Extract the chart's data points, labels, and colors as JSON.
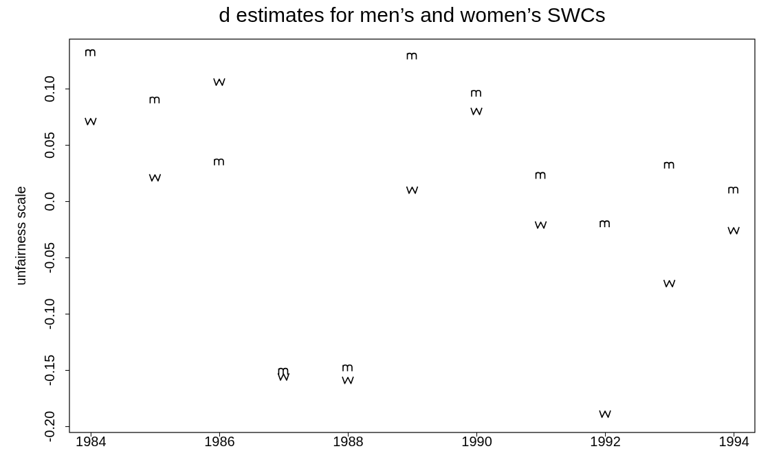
{
  "chart_data": {
    "type": "scatter",
    "title": "d estimates for men’s and women’s SWCs",
    "ylabel": "unfairness scale",
    "x": [
      1984,
      1985,
      1986,
      1987,
      1988,
      1989,
      1990,
      1991,
      1992,
      1993,
      1994
    ],
    "series": [
      {
        "color": "#000000",
        "values": [
          0.132,
          0.09,
          0.035,
          -0.151,
          -0.148,
          0.129,
          0.096,
          0.023,
          -0.02,
          0.032,
          0.01
        ]
      },
      {
        "color": "#000000",
        "values": [
          0.071,
          0.021,
          0.106,
          -0.156,
          -0.159,
          0.01,
          0.08,
          -0.021,
          -0.189,
          -0.073,
          -0.026
        ]
      }
    ],
    "xlim": [
      1983.67,
      1994.33
    ],
    "xticks": [
      1984,
      1986,
      1988,
      1990,
      1992,
      1994
    ],
    "ylim": [
      -0.2055,
      0.144
    ],
    "yticks": [
      {
        "value": -0.2,
        "label": "-0.20"
      },
      {
        "value": -0.15,
        "label": "-0.15"
      },
      {
        "value": -0.1,
        "label": "-0.10"
      },
      {
        "value": -0.05,
        "label": "-0.05"
      },
      {
        "value": 0,
        "label": "0.0"
      },
      {
        "value": 0.05,
        "label": "0.05"
      },
      {
        "value": 0.1,
        "label": "0.10"
      }
    ],
    "grid": false
  }
}
